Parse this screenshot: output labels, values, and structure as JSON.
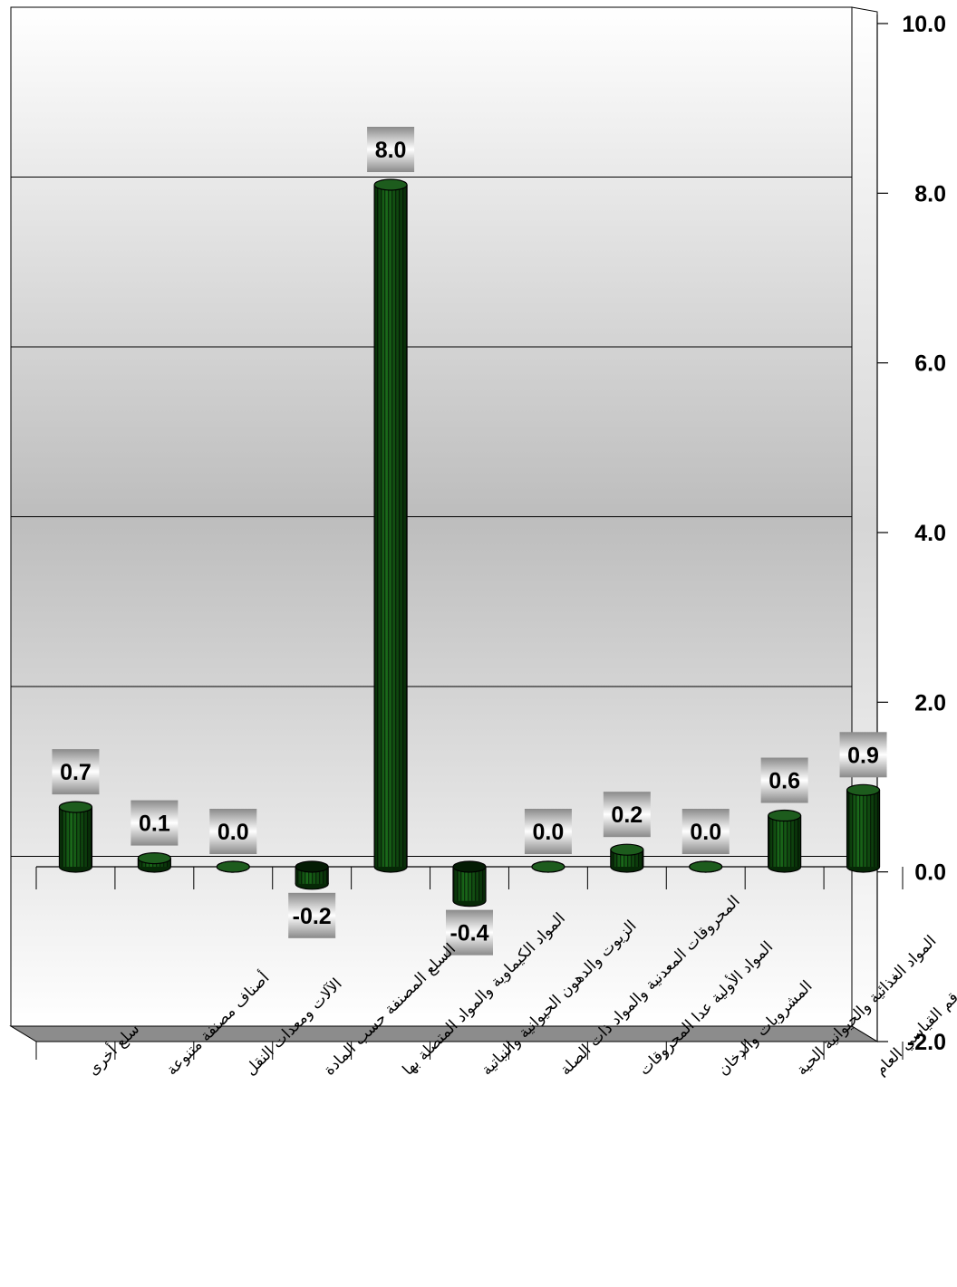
{
  "chart_data": {
    "type": "bar",
    "categories": [
      "سلع أخرى",
      "أصناف مصنفة متنوعة",
      "الآلات ومعدات النقل",
      "السلع المصنفة حسب المادة",
      "المواد الكيماوية والمواد المتصلة بها",
      "الزيوت والدهون الحيوانية والنباتية",
      "المحروقات المعدنية والمواد ذات الصلة",
      "المواد الأولية عدا المحروقات",
      "المشروبات والدخان",
      "المواد الغذائية والحيوانية الحية",
      "الرقم القياسي العام"
    ],
    "values": [
      0.7,
      0.1,
      0.0,
      -0.2,
      8.0,
      -0.4,
      0.0,
      0.2,
      0.0,
      0.6,
      0.9
    ],
    "data_labels": [
      "0.7",
      "0.1",
      "0.0",
      "-0.2",
      "8.0",
      "-0.4",
      "0.0",
      "0.2",
      "0.0",
      "0.6",
      "0.9"
    ],
    "y_ticks": [
      "10.0",
      "8.0",
      "6.0",
      "4.0",
      "2.0",
      "0.0",
      "-2.0"
    ],
    "y_tick_values": [
      10,
      8,
      6,
      4,
      2,
      0,
      -2
    ],
    "ylim": [
      -2,
      10
    ],
    "y_axis_position": "right",
    "grid": true,
    "legend": "none",
    "title": "",
    "xlabel": "",
    "ylabel": "",
    "colors": {
      "bar_fill": "#0d4a0d",
      "bar_dark": "#062806",
      "bar_stripe": "#000000",
      "floor": "#8c8c8c",
      "wall_light": "#ffffff",
      "wall_dark": "#bdbdbd",
      "label_box_light": "#ffffff",
      "label_box_dark": "#8a8a8a"
    }
  }
}
